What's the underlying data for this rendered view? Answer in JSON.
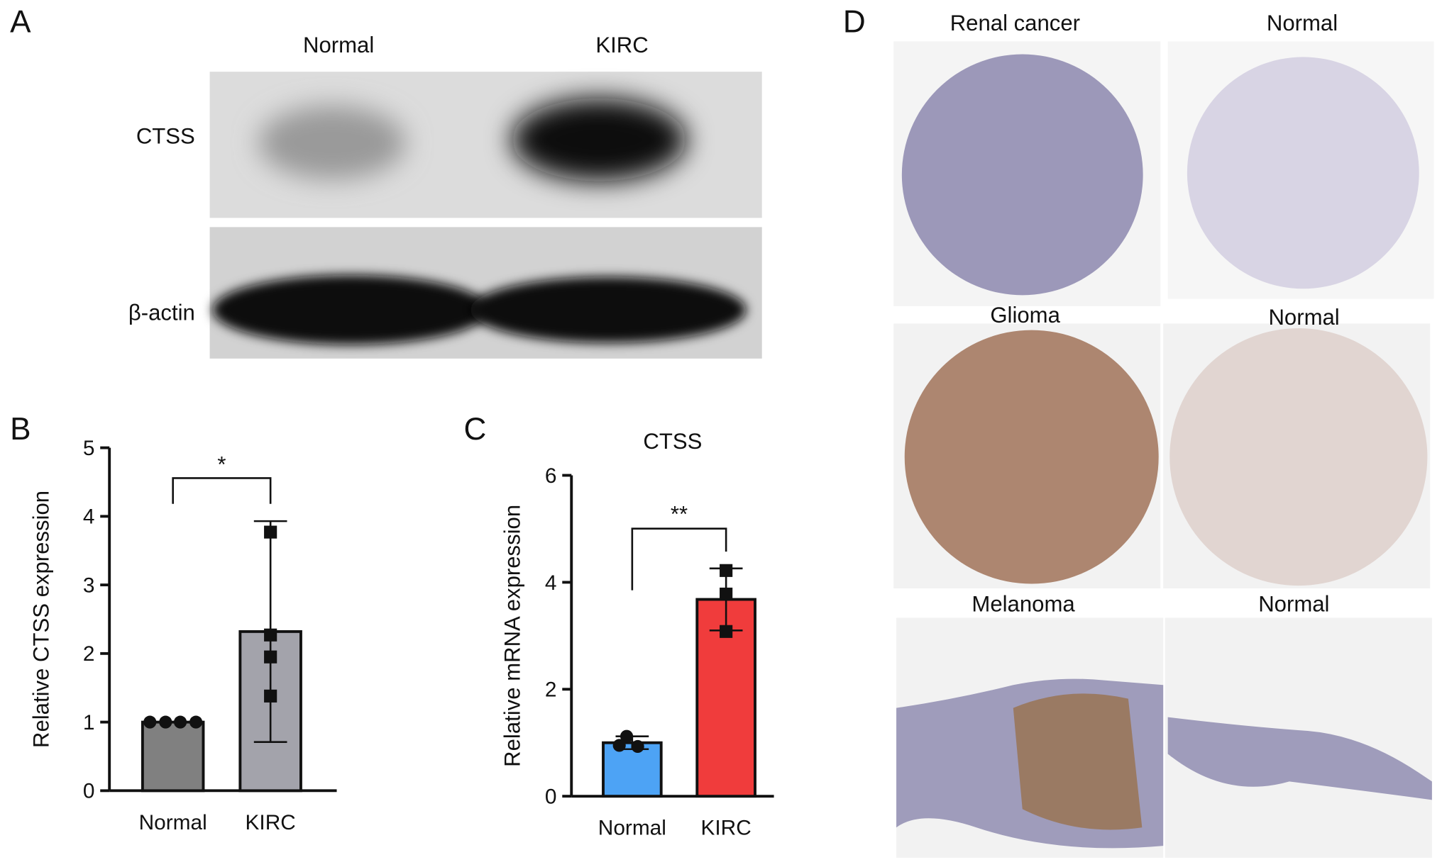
{
  "panel_labels": [
    "A",
    "B",
    "C",
    "D"
  ],
  "blot": {
    "lanes": [
      "Normal",
      "KIRC"
    ],
    "bands": [
      "CTSS",
      "β-actin"
    ]
  },
  "ihc": {
    "titles": [
      "Renal cancer",
      "Normal",
      "Glioma",
      "Normal",
      "Melanoma",
      "Normal"
    ]
  },
  "chart_data": [
    {
      "type": "bar",
      "y_label": "Relative CTSS expression",
      "categories": [
        "Normal",
        "KIRC"
      ],
      "values": [
        1,
        2.32
      ],
      "errors": [
        0,
        1.61
      ],
      "points": [
        [
          1,
          1,
          1,
          1
        ],
        [
          3.77,
          2.27,
          1.95,
          1.38
        ]
      ],
      "markers": [
        "circle",
        "square"
      ],
      "colors": [
        "#808080",
        "#a3a3ab"
      ],
      "significance": "*",
      "ylim": [
        0,
        5
      ],
      "yticks": [
        0,
        1,
        2,
        3,
        4,
        5
      ]
    },
    {
      "type": "bar",
      "title": "CTSS",
      "y_label": "Relative mRNA expression",
      "categories": [
        "Normal",
        "KIRC"
      ],
      "values": [
        1,
        3.68
      ],
      "errors": [
        0.12,
        0.58
      ],
      "points": [
        [
          1.12,
          0.95,
          0.93
        ],
        [
          4.22,
          3.78,
          3.08
        ]
      ],
      "markers": [
        "circle",
        "square"
      ],
      "colors": [
        "#4da3f5",
        "#f03c3c"
      ],
      "significance": "**",
      "ylim": [
        0,
        6
      ],
      "yticks": [
        0,
        2,
        4,
        6
      ]
    }
  ]
}
